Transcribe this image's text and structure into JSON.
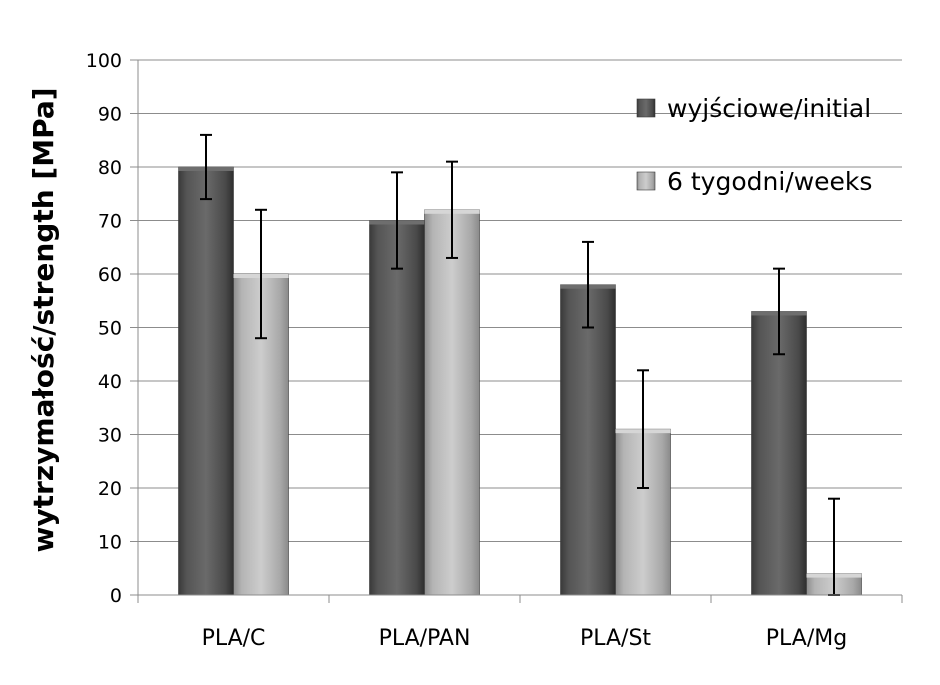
{
  "chart_data": {
    "type": "bar",
    "categories": [
      "PLA/C",
      "PLA/PAN",
      "PLA/St",
      "PLA/Mg"
    ],
    "series": [
      {
        "name": "wyjściowe/initial",
        "values": [
          80,
          70,
          58,
          53
        ],
        "error_low": [
          74,
          61,
          50,
          45
        ],
        "error_high": [
          86,
          79,
          66,
          61
        ],
        "color": "#555555"
      },
      {
        "name": "6 tygodni/weeks",
        "values": [
          60,
          72,
          31,
          4
        ],
        "error_low": [
          48,
          63,
          20,
          0
        ],
        "error_high": [
          72,
          81,
          42,
          18
        ],
        "color": "#b0b0b0"
      }
    ],
    "title": "",
    "xlabel": "",
    "ylabel": "wytrzymałość/strength [MPa]",
    "ylim": [
      0,
      100
    ],
    "yticks": [
      0,
      10,
      20,
      30,
      40,
      50,
      60,
      70,
      80,
      90,
      100
    ],
    "grid": true,
    "legend_position": "top-right",
    "error_bars": true
  }
}
